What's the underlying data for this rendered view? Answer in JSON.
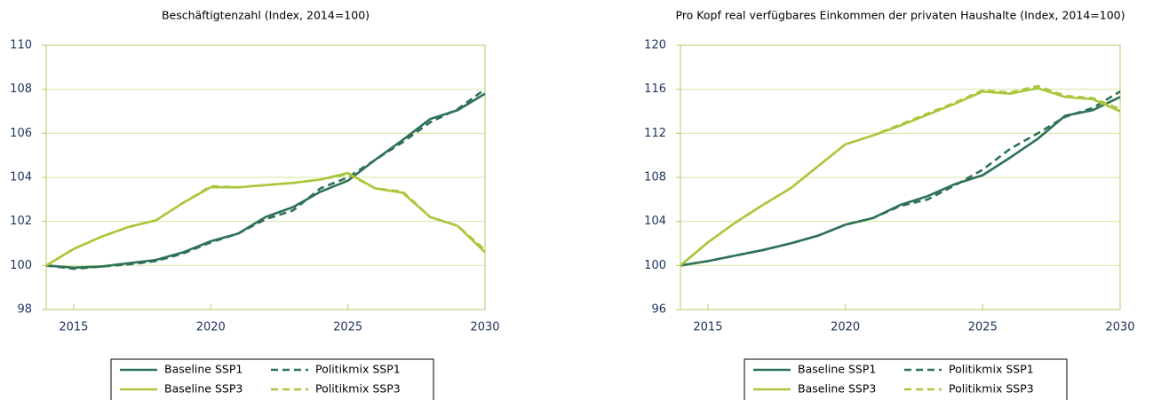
{
  "chart_data": [
    {
      "type": "line",
      "title": "Beschäftigtenzahl (Index, 2014=100)",
      "x": [
        2014,
        2015,
        2016,
        2017,
        2018,
        2019,
        2020,
        2021,
        2022,
        2023,
        2024,
        2025,
        2026,
        2027,
        2028,
        2029,
        2030
      ],
      "xlim": [
        2014,
        2030
      ],
      "xticks": [
        2015,
        2020,
        2025,
        2030
      ],
      "ylim": [
        98,
        110
      ],
      "yticks": [
        98,
        100,
        102,
        104,
        106,
        108,
        110
      ],
      "grid": true,
      "series": [
        {
          "name": "Baseline SSP1",
          "color": "#2e7256",
          "dashed": false,
          "values": [
            100,
            99.9,
            99.95,
            100.1,
            100.25,
            100.6,
            101.1,
            101.45,
            102.2,
            102.65,
            103.35,
            103.85,
            104.8,
            105.7,
            106.65,
            107.05,
            107.8
          ]
        },
        {
          "name": "Politikmix SSP1",
          "color": "#2e7256",
          "dashed": true,
          "values": [
            100,
            99.85,
            99.95,
            100.05,
            100.2,
            100.55,
            101.05,
            101.45,
            102.1,
            102.5,
            103.5,
            104.0,
            104.8,
            105.6,
            106.5,
            107.1,
            108.0
          ]
        },
        {
          "name": "Baseline SSP3",
          "color": "#a9c73c",
          "dashed": false,
          "values": [
            100,
            100.75,
            101.3,
            101.75,
            102.05,
            102.85,
            103.55,
            103.55,
            103.65,
            103.75,
            103.9,
            104.2,
            103.5,
            103.3,
            102.2,
            101.8,
            100.6
          ]
        },
        {
          "name": "Politikmix SSP3",
          "color": "#a9c73c",
          "dashed": true,
          "values": [
            100,
            100.75,
            101.3,
            101.75,
            102.05,
            102.85,
            103.6,
            103.55,
            103.65,
            103.75,
            103.9,
            104.15,
            103.5,
            103.35,
            102.2,
            101.8,
            100.7
          ]
        }
      ]
    },
    {
      "type": "line",
      "title": "Pro Kopf real verfügbares Einkommen der privaten Haushalte (Index, 2014=100)",
      "x": [
        2014,
        2015,
        2016,
        2017,
        2018,
        2019,
        2020,
        2021,
        2022,
        2023,
        2024,
        2025,
        2026,
        2027,
        2028,
        2029,
        2030
      ],
      "xlim": [
        2014,
        2030
      ],
      "xticks": [
        2015,
        2020,
        2025,
        2030
      ],
      "ylim": [
        96,
        120
      ],
      "yticks": [
        96,
        100,
        104,
        108,
        112,
        116,
        120
      ],
      "grid": true,
      "series": [
        {
          "name": "Baseline SSP1",
          "color": "#2e7256",
          "dashed": false,
          "values": [
            100,
            100.4,
            100.9,
            101.4,
            102.0,
            102.7,
            103.7,
            104.3,
            105.5,
            106.3,
            107.4,
            108.2,
            109.8,
            111.5,
            113.6,
            114.1,
            115.3
          ]
        },
        {
          "name": "Politikmix SSP1",
          "color": "#2e7256",
          "dashed": true,
          "values": [
            100,
            100.4,
            100.9,
            101.4,
            102.0,
            102.7,
            103.7,
            104.3,
            105.4,
            106.0,
            107.3,
            108.7,
            110.6,
            112.0,
            113.5,
            114.3,
            115.8
          ]
        },
        {
          "name": "Baseline SSP3",
          "color": "#a9c73c",
          "dashed": false,
          "values": [
            100,
            102.1,
            103.9,
            105.5,
            107.0,
            109.0,
            111.0,
            111.8,
            112.7,
            113.7,
            114.7,
            115.8,
            115.6,
            116.1,
            115.3,
            115.1,
            114.0
          ]
        },
        {
          "name": "Politikmix SSP3",
          "color": "#a9c73c",
          "dashed": true,
          "values": [
            100,
            102.1,
            103.9,
            105.5,
            107.0,
            109.0,
            111.0,
            111.8,
            112.8,
            113.8,
            114.8,
            115.9,
            115.7,
            116.3,
            115.4,
            115.2,
            114.2
          ]
        }
      ]
    }
  ]
}
